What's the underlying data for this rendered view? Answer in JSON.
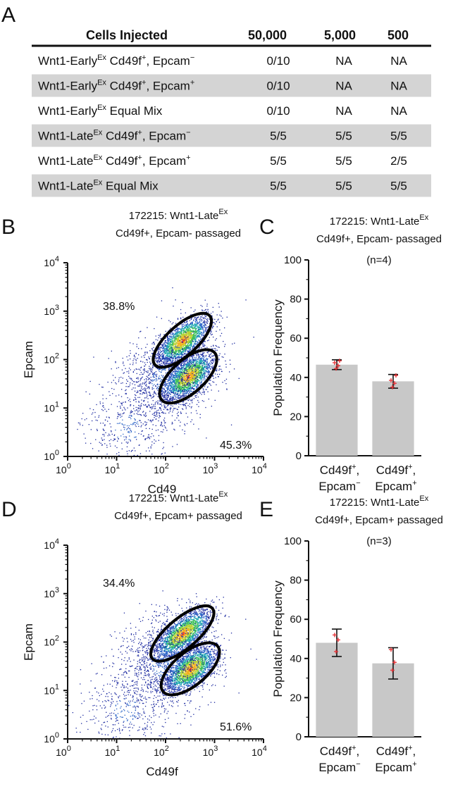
{
  "panel_letters": {
    "a": "A",
    "b": "B",
    "c": "C",
    "d": "D",
    "e": "E"
  },
  "table": {
    "headers": [
      "Cells Injected",
      "50,000",
      "5,000",
      "500"
    ],
    "rows": [
      {
        "prefix": "Wnt1-Early",
        "sup": "Ex",
        "mid": " Cd49f",
        "sup2": "+",
        "tail": ", Epcam",
        "sup3": "−",
        "c1": "0/10",
        "c2": "NA",
        "c3": "NA",
        "shaded": false
      },
      {
        "prefix": "Wnt1-Early",
        "sup": "Ex",
        "mid": " Cd49f",
        "sup2": "+",
        "tail": ", Epcam",
        "sup3": "+",
        "c1": "0/10",
        "c2": "NA",
        "c3": "NA",
        "shaded": true
      },
      {
        "prefix": "Wnt1-Early",
        "sup": "Ex",
        "mid": " Equal Mix",
        "sup2": "",
        "tail": "",
        "sup3": "",
        "c1": "0/10",
        "c2": "NA",
        "c3": "NA",
        "shaded": false
      },
      {
        "prefix": "Wnt1-Late",
        "sup": "Ex",
        "mid": " Cd49f",
        "sup2": "+",
        "tail": ", Epcam",
        "sup3": "−",
        "c1": "5/5",
        "c2": "5/5",
        "c3": "5/5",
        "shaded": true
      },
      {
        "prefix": "Wnt1-Late",
        "sup": "Ex",
        "mid": " Cd49f",
        "sup2": "+",
        "tail": ", Epcam",
        "sup3": "+",
        "c1": "5/5",
        "c2": "5/5",
        "c3": "2/5",
        "shaded": false
      },
      {
        "prefix": "Wnt1-Late",
        "sup": "Ex",
        "mid": " Equal Mix",
        "sup2": "",
        "tail": "",
        "sup3": "",
        "c1": "5/5",
        "c2": "5/5",
        "c3": "5/5",
        "shaded": true
      }
    ]
  },
  "chart_data": [
    {
      "panel": "B",
      "type": "scatter",
      "title_line1": "172215: Wnt1-Late",
      "title_sup": "Ex",
      "title_line2": "Cd49f+, Epcam- passaged",
      "xlabel": "Cd49",
      "ylabel": "Epcam",
      "scale": "log",
      "xlim": [
        1,
        10000
      ],
      "ylim": [
        1,
        10000
      ],
      "ticks": [
        "0",
        "1",
        "2",
        "3",
        "4"
      ],
      "tick_base": "10",
      "annotations": [
        {
          "text": "38.8%"
        },
        {
          "text": "45.3%"
        }
      ],
      "gates": [
        {
          "name": "Epcam-high gate",
          "center": [
            220,
            250
          ],
          "major_decades": 1.5,
          "minor_decades": 0.62,
          "angle_deg": 42
        },
        {
          "name": "Epcam-low gate",
          "center": [
            290,
            45
          ],
          "major_decades": 1.45,
          "minor_decades": 0.68,
          "angle_deg": 42
        }
      ]
    },
    {
      "panel": "C",
      "type": "bar",
      "title_line1": "172215: Wnt1-Late",
      "title_sup": "Ex",
      "title_line2": "Cd49f+, Epcam- passaged",
      "title_line3": "(n=4)",
      "ylabel": "Population Frequency",
      "ylim": [
        0,
        100
      ],
      "yticks": [
        0,
        20,
        40,
        60,
        80,
        100
      ],
      "categories": [
        {
          "line1": "Cd49f",
          "sup1": "+",
          "line1_tail": ",",
          "line2": "Epcam",
          "sup2": "−"
        },
        {
          "line1": "Cd49f",
          "sup1": "+",
          "line1_tail": ",",
          "line2": "Epcam",
          "sup2": "+"
        }
      ],
      "values": [
        46.5,
        38
      ],
      "errors": [
        2.5,
        3.5
      ],
      "points": [
        [
          44.5,
          46,
          47.5,
          48.5
        ],
        [
          35,
          37,
          38.5,
          41
        ]
      ]
    },
    {
      "panel": "D",
      "type": "scatter",
      "title_line1": "172215: Wnt1-Late",
      "title_sup": "Ex",
      "title_line2": "Cd49f+, Epcam+ passaged",
      "xlabel": "Cd49f",
      "ylabel": "Epcam",
      "scale": "log",
      "xlim": [
        1,
        10000
      ],
      "ylim": [
        1,
        10000
      ],
      "ticks": [
        "0",
        "1",
        "2",
        "3",
        "4"
      ],
      "tick_base": "10",
      "annotations": [
        {
          "text": "34.4%"
        },
        {
          "text": "51.6%"
        }
      ],
      "gates": [
        {
          "name": "Epcam-high gate",
          "center": [
            220,
            150
          ],
          "major_decades": 1.6,
          "minor_decades": 0.62,
          "angle_deg": 40
        },
        {
          "name": "Epcam-low gate",
          "center": [
            320,
            28
          ],
          "major_decades": 1.45,
          "minor_decades": 0.68,
          "angle_deg": 40
        }
      ]
    },
    {
      "panel": "E",
      "type": "bar",
      "title_line1": "172215: Wnt1-Late",
      "title_sup": "Ex",
      "title_line2": "Cd49f+, Epcam+ passaged",
      "title_line3": "(n=3)",
      "ylabel": "Population Frequency",
      "ylim": [
        0,
        100
      ],
      "yticks": [
        0,
        20,
        40,
        60,
        80,
        100
      ],
      "categories": [
        {
          "line1": "Cd49f",
          "sup1": "+",
          "line1_tail": ",",
          "line2": "Epcam",
          "sup2": "−"
        },
        {
          "line1": "Cd49f",
          "sup1": "+",
          "line1_tail": ",",
          "line2": "Epcam",
          "sup2": "+"
        }
      ],
      "values": [
        48,
        37.5
      ],
      "errors": [
        7,
        8
      ],
      "points": [
        [
          43.5,
          49.5,
          52
        ],
        [
          34,
          38,
          44.5
        ]
      ]
    }
  ],
  "colors": {
    "bar": "#c8c8c8",
    "point": "#e8363a",
    "row_shade": "#d4d4d4",
    "gate": "#000000",
    "density": [
      "#1c2aa0",
      "#2a64c8",
      "#19a6b0",
      "#3cbf5a",
      "#b8d234",
      "#f0b21e",
      "#e8421c"
    ]
  }
}
